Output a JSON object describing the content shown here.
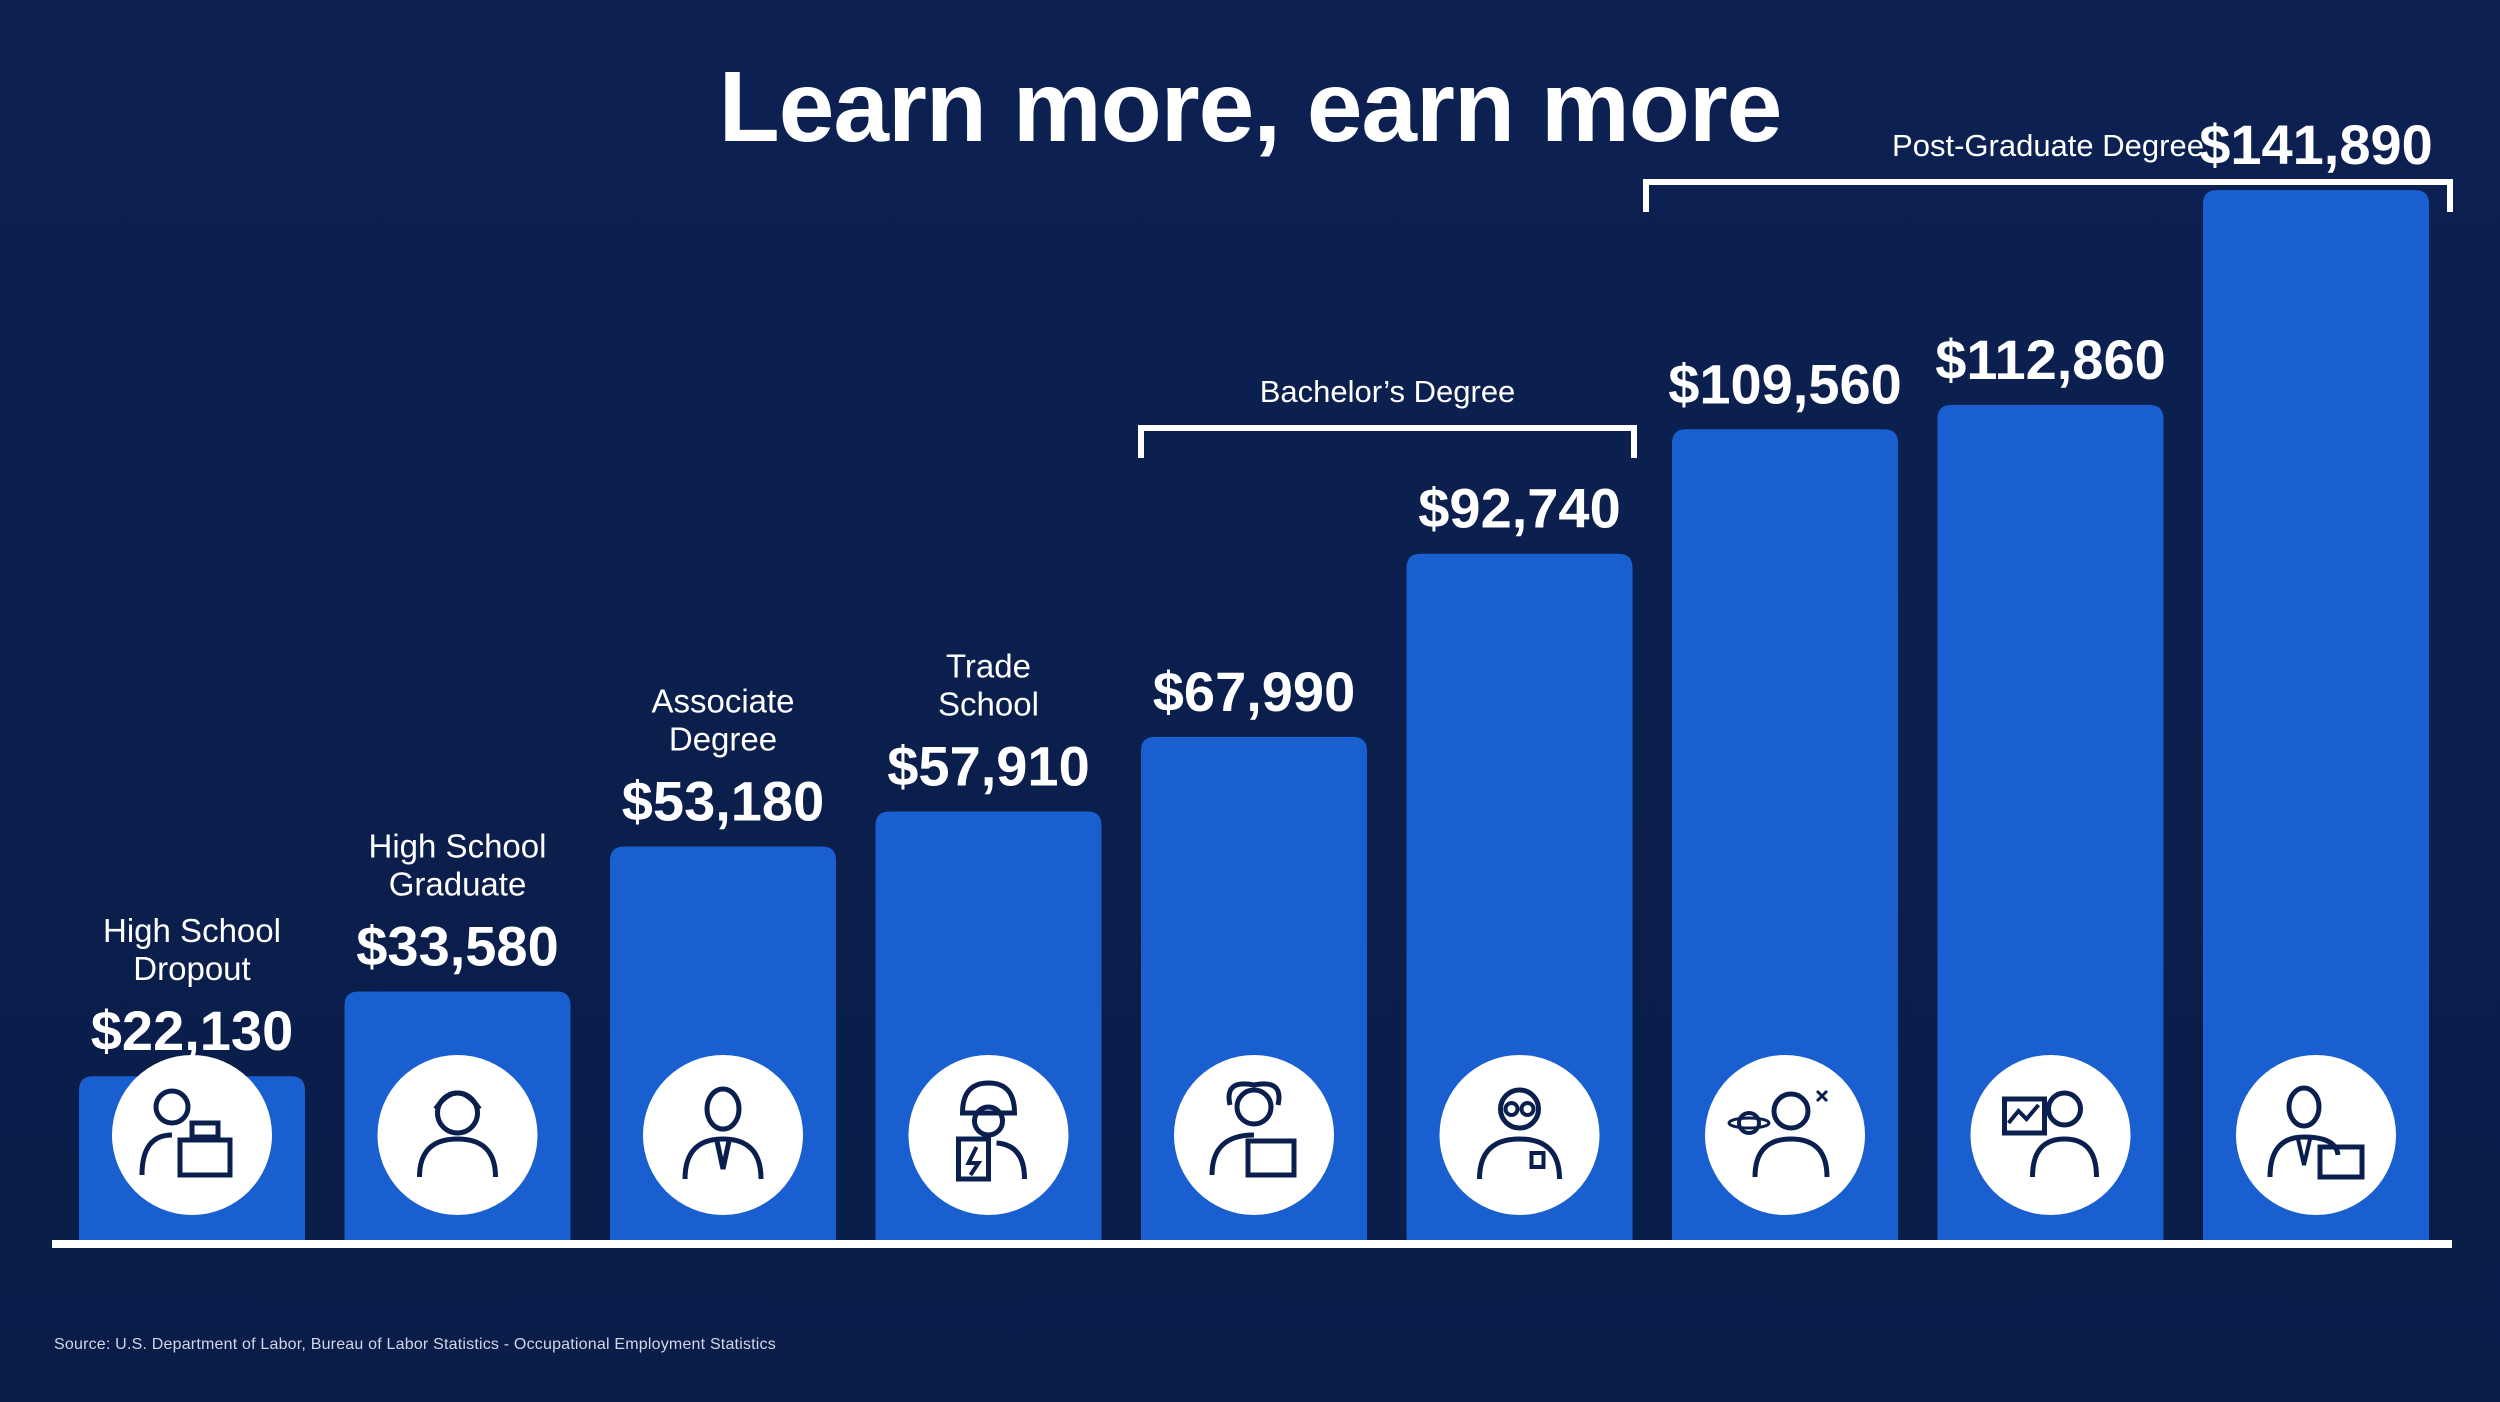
{
  "title": "Learn more, earn more",
  "source": "Source: U.S. Department of Labor, Bureau of Labor Statistics - Occupational Employment Statistics",
  "colors": {
    "background": "#0b1f4e",
    "bar": "#1a5fcf",
    "text": "#ffffff"
  },
  "chart_data": {
    "type": "bar",
    "title": "Learn more, earn more",
    "categories": [
      [
        "High School",
        "Dropout"
      ],
      [
        "High School",
        "Graduate"
      ],
      [
        "Associate",
        "Degree"
      ],
      [
        "Trade",
        "School"
      ],
      [],
      [],
      [],
      [],
      []
    ],
    "values": [
      22130,
      33580,
      53180,
      57910,
      67990,
      92740,
      109560,
      112860,
      141890
    ],
    "value_labels": [
      "$22,130",
      "$33,580",
      "$53,180",
      "$57,910",
      "$67,990",
      "$92,740",
      "$109,560",
      "$112,860",
      "$141,890"
    ],
    "icons": [
      "cashier-icon",
      "call-center-icon",
      "businessman-icon",
      "electrician-icon",
      "office-worker-icon",
      "scientist-icon",
      "astronomer-icon",
      "analyst-icon",
      "executive-icon"
    ],
    "groups": [
      {
        "label": "Bachelor’s Degree",
        "from": 4,
        "to": 5
      },
      {
        "label": "Post-Graduate Degree",
        "from": 6,
        "to": 8
      }
    ],
    "ylim": [
      0,
      150000
    ],
    "grid": false,
    "legend": "none"
  }
}
